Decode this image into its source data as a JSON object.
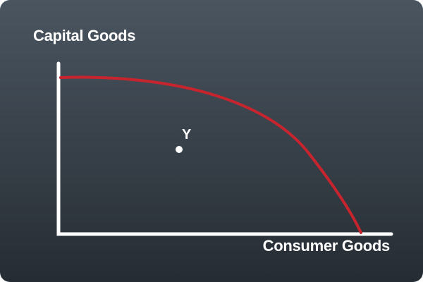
{
  "diagram": {
    "y_axis_label": "Capital Goods",
    "x_axis_label": "Consumer Goods",
    "point_label": "Y"
  },
  "colors": {
    "background_top": "#4a5560",
    "background_bottom": "#262c33",
    "axes": "#ffffff",
    "curve": "#c8242e",
    "point": "#ffffff",
    "text": "#ffffff"
  }
}
